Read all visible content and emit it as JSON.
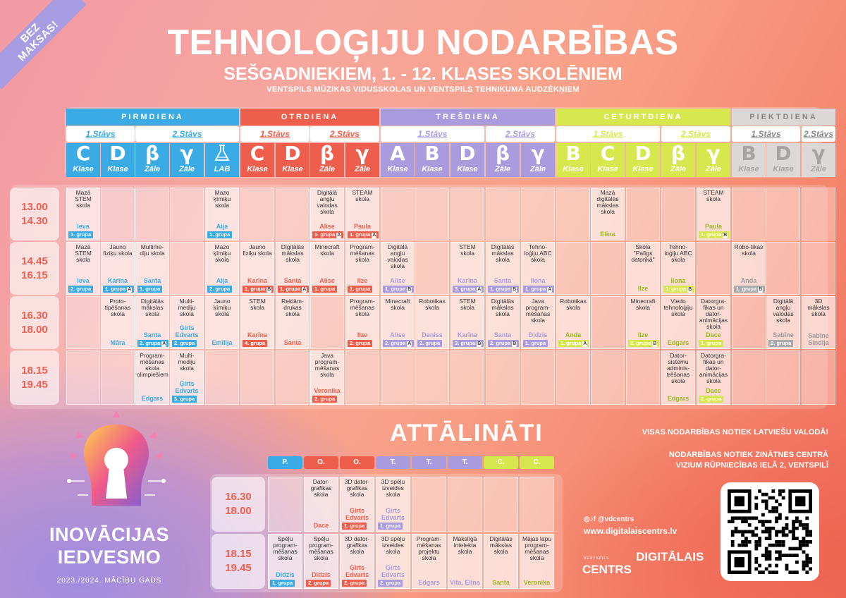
{
  "ribbon": [
    "BEZ",
    "MAKSAS!"
  ],
  "title": "TEHNOLOĢIJU NODARBĪBAS",
  "subtitle": "SEŠGADNIEKIEM, 1. - 12. KLASES SKOLĒNIEM",
  "subtitle2": "VENTSPILS MŪZIKAS VIDUSSKOLAS UN VENTSPILS TEHNIKUMA AUDZĒKŅIEM",
  "colors": {
    "blue": "#3aabe5",
    "red": "#ee5e4c",
    "purple": "#a99bde",
    "yellow": "#d6e84e",
    "gray": "#c0bcbc"
  },
  "days": [
    {
      "name": "PIRMDIENA",
      "color": "#3aabe5",
      "text": "#fff"
    },
    {
      "name": "OTRDIENA",
      "color": "#ee5e4c",
      "text": "#fff"
    },
    {
      "name": "TREŠDIENA",
      "color": "#a99bde",
      "text": "#fff"
    },
    {
      "name": "CETURTDIENA",
      "color": "#d6e84e",
      "text": "#fff"
    },
    {
      "name": "PIEKTDIENA",
      "color": "#ddd8d8",
      "text": "#8a8585"
    }
  ],
  "floors": [
    {
      "label": "1.Stāvs",
      "color": "#3aabe5",
      "span": 2
    },
    {
      "label": "2.Stāvs",
      "color": "#3aabe5",
      "span": 3
    },
    {
      "label": "1.Stāvs",
      "color": "#ee5e4c",
      "span": 2
    },
    {
      "label": "2.Stāvs",
      "color": "#ee5e4c",
      "span": 2
    },
    {
      "label": "1.Stāvs",
      "color": "#a99bde",
      "span": 3
    },
    {
      "label": "2.Stāvs",
      "color": "#a99bde",
      "span": 2
    },
    {
      "label": "1.Stāvs",
      "color": "#d6e84e",
      "span": 3
    },
    {
      "label": "2.Stāvs",
      "color": "#d6e84e",
      "span": 2
    },
    {
      "label": "1.Stāvs",
      "color": "#888",
      "span": 2
    },
    {
      "label": "2.Stāvs",
      "color": "#888",
      "span": 1
    }
  ],
  "rooms": [
    {
      "l": "C",
      "s": "Klase",
      "c": "#3aabe5"
    },
    {
      "l": "D",
      "s": "Klase",
      "c": "#3aabe5"
    },
    {
      "l": "β",
      "s": "Zāle",
      "c": "#3aabe5"
    },
    {
      "l": "γ",
      "s": "Zāle",
      "c": "#3aabe5"
    },
    {
      "l": "LAB-icon",
      "s": "LAB",
      "c": "#3aabe5"
    },
    {
      "l": "C",
      "s": "Klase",
      "c": "#ee5e4c"
    },
    {
      "l": "D",
      "s": "Klase",
      "c": "#ee5e4c"
    },
    {
      "l": "β",
      "s": "Zāle",
      "c": "#ee5e4c"
    },
    {
      "l": "γ",
      "s": "Zāle",
      "c": "#ee5e4c"
    },
    {
      "l": "A",
      "s": "Klase",
      "c": "#a99bde"
    },
    {
      "l": "B",
      "s": "Klase",
      "c": "#a99bde"
    },
    {
      "l": "D",
      "s": "Klase",
      "c": "#a99bde"
    },
    {
      "l": "β",
      "s": "Zāle",
      "c": "#a99bde"
    },
    {
      "l": "γ",
      "s": "Zāle",
      "c": "#a99bde"
    },
    {
      "l": "B",
      "s": "Klase",
      "c": "#d6e84e"
    },
    {
      "l": "C",
      "s": "Klase",
      "c": "#d6e84e"
    },
    {
      "l": "D",
      "s": "Klase",
      "c": "#d6e84e"
    },
    {
      "l": "β",
      "s": "Zāle",
      "c": "#d6e84e"
    },
    {
      "l": "γ",
      "s": "Zāle",
      "c": "#d6e84e"
    },
    {
      "l": "B",
      "s": "Klase",
      "c": "#ddd8d8"
    },
    {
      "l": "D",
      "s": "Klase",
      "c": "#ddd8d8"
    },
    {
      "l": "γ",
      "s": "Zāle",
      "c": "#ddd8d8"
    }
  ],
  "times": [
    [
      "13.00",
      "14.30"
    ],
    [
      "14.45",
      "16.15"
    ],
    [
      "16.30",
      "18.00"
    ],
    [
      "18.15",
      "19.45"
    ]
  ],
  "schedule": [
    [
      {
        "c": 0,
        "t": "Mazā STEM skola",
        "n": "Ieva",
        "g": "1. grupa"
      },
      {
        "c": 4,
        "t": "Mazo ķīmiķu skola",
        "n": "Aija",
        "g": "1. grupa"
      },
      {
        "c": 7,
        "t": "Digitālā angļu valodas skola",
        "n": "Alise",
        "g": "1. grupa",
        "b": "A"
      },
      {
        "c": 8,
        "t": "STEAM skola",
        "n": "Paula",
        "g": "1. grupa",
        "b": "A"
      },
      {
        "c": 15,
        "t": "Mazā digitālās mākslas skola",
        "n": "Elīna"
      },
      {
        "c": 18,
        "t": "STEAM skola",
        "n": "Paula",
        "g": "1. grupa",
        "b": "B"
      }
    ],
    [
      {
        "c": 0,
        "t": "Mazā STEM skola",
        "n": "Ieva",
        "g": "2. grupa"
      },
      {
        "c": 1,
        "t": "Jauno fiziķu skola",
        "n": "Karīna",
        "g": "1. grupa",
        "b": "A"
      },
      {
        "c": 2,
        "t": "Multime-diju skola",
        "n": "Santa",
        "g": "1. grupa"
      },
      {
        "c": 4,
        "t": "Mazo ķīmiķu skola",
        "n": "Aija",
        "g": "2. grupa"
      },
      {
        "c": 5,
        "t": "Jauno fiziķu skola",
        "n": "Karīna",
        "g": "1. grupa",
        "b": "B"
      },
      {
        "c": 6,
        "t": "Digitālās mākslas skola",
        "n": "Santa",
        "g": "1. grupa",
        "b": "A"
      },
      {
        "c": 7,
        "t": "Minecraft skola",
        "n": "Alise",
        "g": "1. grupa"
      },
      {
        "c": 8,
        "t": "Program-mēšanas skola",
        "n": "Ilze",
        "g": "1. grupa"
      },
      {
        "c": 9,
        "t": "Digitālā angļu valodas skola",
        "n": "Alise",
        "g": "1. grupa",
        "b": "B"
      },
      {
        "c": 11,
        "t": "STEM skola",
        "n": "Karīna",
        "g": "3. grupa",
        "b": "A"
      },
      {
        "c": 12,
        "t": "Digitālās mākslas skola",
        "n": "Santa",
        "g": "1. grupa",
        "b": "B"
      },
      {
        "c": 13,
        "t": "Tehno-loģiju ABC skola",
        "n": "Ilona",
        "g": "1. grupa",
        "b": "A"
      },
      {
        "c": 16,
        "t": "Skola \"Palīgs datorikā\"",
        "n": "Ilze"
      },
      {
        "c": 17,
        "t": "Tehno-loģiju ABC skola",
        "n": "Ilona",
        "g": "1. grupa",
        "b": "B"
      },
      {
        "c": 19,
        "t": "Robo-tikas skola",
        "n": "Anda",
        "g": "1. grupa",
        "b": "B"
      }
    ],
    [
      {
        "c": 1,
        "t": "Proto-tipēšanas skola",
        "n": "Māra"
      },
      {
        "c": 2,
        "t": "Digitālās mākslas skola",
        "n": "Santa",
        "g": "2. grupa",
        "b": "A"
      },
      {
        "c": 3,
        "t": "Multi-mediju skola",
        "n": "Ģirts Edvarts",
        "g": "2. grupa"
      },
      {
        "c": 4,
        "t": "Jauno ķīmiķu skola",
        "n": "Emīlija"
      },
      {
        "c": 5,
        "t": "STEM skola",
        "n": "Karīna",
        "g": "4. grupa"
      },
      {
        "c": 6,
        "t": "Reklām-drukas skola",
        "n": "Santa"
      },
      {
        "c": 8,
        "t": "Program-mēšanas skola",
        "n": "Ilze",
        "g": "2. grupa"
      },
      {
        "c": 9,
        "t": "Minecraft skola",
        "n": "Alise",
        "g": "2. grupa",
        "b": "A"
      },
      {
        "c": 10,
        "t": "Robotikas skola",
        "n": "Deniss",
        "g": "2. grupa"
      },
      {
        "c": 11,
        "t": "STEM skola",
        "n": "Karīna",
        "g": "3. grupa",
        "b": "B"
      },
      {
        "c": 12,
        "t": "Digitālās mākslas skola",
        "n": "Santa",
        "g": "2. grupa",
        "b": "B"
      },
      {
        "c": 13,
        "t": "Java program-mēšanas skola",
        "n": "Didzis",
        "g": "1. grupa"
      },
      {
        "c": 14,
        "t": "Robotikas skola",
        "n": "Anda",
        "g": "1. grupa",
        "b": "A"
      },
      {
        "c": 16,
        "t": "Minecraft skola",
        "n": "Ilze",
        "g": "2. grupa",
        "b": "B"
      },
      {
        "c": 17,
        "t": "Viedo tehnoloģiju skola",
        "n": "Edgars"
      },
      {
        "c": 18,
        "t": "Datorgra-fikas un dator-animācijas skola",
        "n": "Dace",
        "g": "1. grupa"
      },
      {
        "c": 20,
        "t": "Digitālā angļu valodas skola",
        "n": "Sabīne",
        "g": "2. grupa"
      },
      {
        "c": 21,
        "t": "3D mākslas skola",
        "n": "Sabīne Sindija"
      }
    ],
    [
      {
        "c": 2,
        "t": "Program-mēšanas skola olimpiešiem",
        "n": "Edgars"
      },
      {
        "c": 3,
        "t": "Multi-mediju skola",
        "n": "Ģirts Edvarts",
        "g": "3. grupa"
      },
      {
        "c": 7,
        "t": "Java program-mēšanas skola",
        "n": "Veronika",
        "g": "2. grupa"
      },
      {
        "c": 17,
        "t": "Dator-sistēmu adminis-trēšanas skola",
        "n": "Edgars"
      },
      {
        "c": 18,
        "t": "Datorgra-fikas un dator-animācijas skola",
        "n": "Dace",
        "g": "2. grupa"
      }
    ]
  ],
  "remote": {
    "title": "ATTĀLINĀTI",
    "days": [
      {
        "l": "P.",
        "c": "#3aabe5"
      },
      {
        "l": "O.",
        "c": "#ee5e4c"
      },
      {
        "l": "O.",
        "c": "#ee5e4c"
      },
      {
        "l": "T.",
        "c": "#a99bde"
      },
      {
        "l": "T.",
        "c": "#a99bde"
      },
      {
        "l": "T.",
        "c": "#a99bde"
      },
      {
        "l": "C.",
        "c": "#d6e84e"
      },
      {
        "l": "C.",
        "c": "#d6e84e"
      }
    ],
    "times": [
      [
        "16.30",
        "18.00"
      ],
      [
        "18.15",
        "19.45"
      ]
    ],
    "rows": [
      [
        {
          "c": 1,
          "t": "Dator-grafikas skola",
          "n": "Dace"
        },
        {
          "c": 2,
          "t": "3D dator-grafikas skola",
          "n": "Ģirts Edvarts",
          "g": "1. grupa"
        },
        {
          "c": 3,
          "t": "3D spēļu izveides skola",
          "n": "Ģirts Edvarts",
          "g": "1. grupa"
        }
      ],
      [
        {
          "c": 0,
          "t": "Spēļu program-mēšanas skola",
          "n": "Didzis",
          "g": "1. grupa"
        },
        {
          "c": 1,
          "t": "Spēļu program-mēšanas skola",
          "n": "Didzis",
          "g": "2. grupa"
        },
        {
          "c": 2,
          "t": "3D dator-grafikas skola",
          "n": "Ģirts Edvarts",
          "g": "2. grupa"
        },
        {
          "c": 3,
          "t": "3D spēļu izveides skola",
          "n": "Ģirts Edvarts",
          "g": "2. grupa"
        },
        {
          "c": 4,
          "t": "Program-mēšanas projektu skola",
          "n": "Edgars"
        },
        {
          "c": 5,
          "t": "Mākslīgā intelekta skola",
          "n": "Vita, Elīna"
        },
        {
          "c": 6,
          "t": "Digitālās mākslas skola",
          "n": "Santa"
        },
        {
          "c": 7,
          "t": "Mājas lapu program-mēšanas skola",
          "n": "Veronika"
        }
      ]
    ]
  },
  "info1": "VISAS NODARBĪBAS NOTIEK LATVIEŠU VALODĀ!",
  "info2": [
    "NODARBĪBAS NOTIEK ZINĀTNES CENTRĀ",
    "VIZIUM RŪPNIECĪBAS IELĀ 2, VENTSPILĪ"
  ],
  "brand": [
    "INOVĀCIJAS",
    "IEDVESMO"
  ],
  "brandsub": "2023./2024. MĀCĪBU GADS",
  "social": "◎♪f @vdcentrs",
  "web": "www.digitalaiscentrs.lv",
  "dc": {
    "small": "VENTSPILS",
    "main": "DIGITĀLAIS",
    "main2": "CENTRS"
  }
}
